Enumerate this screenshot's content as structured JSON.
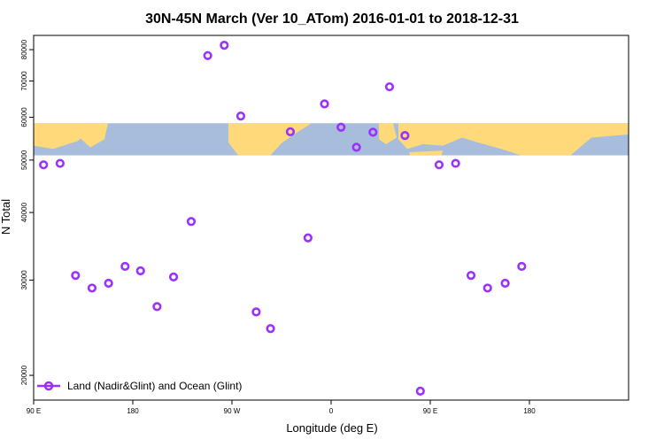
{
  "chart_data": {
    "type": "scatter",
    "title": "30N-45N March (Ver 10_ATom)   2016-01-01 to 2018-12-31",
    "xlabel": "Longitude (deg E)",
    "ylabel": "N Total",
    "xlim": [
      -90,
      180
    ],
    "ylim": [
      18000,
      85000
    ],
    "y_scale": "log",
    "x_ticks": [
      {
        "value": -90,
        "label": "90 E"
      },
      {
        "value": -45,
        "label": "180"
      },
      {
        "value": 0,
        "label": "90 W"
      },
      {
        "value": 45,
        "label": "0"
      },
      {
        "value": 90,
        "label": "90 E"
      },
      {
        "value": 135,
        "label": "180"
      }
    ],
    "y_ticks": [
      {
        "value": 20000,
        "label": "20000"
      },
      {
        "value": 30000,
        "label": "30000"
      },
      {
        "value": 40000,
        "label": "40000"
      },
      {
        "value": 50000,
        "label": "50000"
      },
      {
        "value": 60000,
        "label": "60000"
      },
      {
        "value": 70000,
        "label": "70000"
      },
      {
        "value": 80000,
        "label": "80000"
      }
    ],
    "grid": false,
    "legend_position": "bottom-left",
    "background_map": {
      "type": "world map strip",
      "y_range": [
        51000,
        58500
      ],
      "land_color": "#FFD97A",
      "ocean_color": "#A8BCDB"
    },
    "series": [
      {
        "name": "Land (Nadir&Glint) and Ocean (Glint)",
        "color": "#9B30FF",
        "marker": "open-circle",
        "x": [
          -85.5,
          -78,
          -71,
          -63.5,
          -56,
          -48.5,
          -41.5,
          -34,
          -26.5,
          -18.5,
          -11,
          -3.5,
          4,
          11,
          17.5,
          26.5,
          34.5,
          42,
          49.5,
          56.5,
          64,
          71.5,
          78.5,
          85.5,
          94,
          101.5,
          108.5,
          116,
          124,
          131.5
        ],
        "y": [
          49000,
          49300,
          30600,
          29000,
          29600,
          31800,
          31200,
          26800,
          30400,
          38500,
          78000,
          81500,
          60300,
          26200,
          24400,
          56400,
          35900,
          63500,
          57500,
          52800,
          56300,
          68300,
          55500,
          18700,
          49000,
          49300,
          30600,
          29000,
          29600,
          31800
        ]
      }
    ]
  }
}
